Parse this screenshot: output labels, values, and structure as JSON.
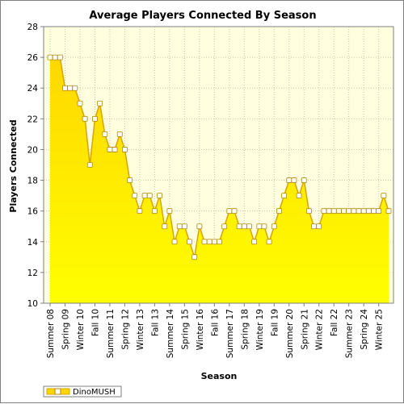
{
  "chart_data": {
    "type": "area",
    "title": "Average Players Connected By Season",
    "xlabel": "Season",
    "ylabel": "Players Connected",
    "ylim": [
      10,
      28
    ],
    "yticks": [
      10,
      12,
      14,
      16,
      18,
      20,
      22,
      24,
      26,
      28
    ],
    "x_tick_labels": [
      "Summer 08",
      "Spring 09",
      "Winter 10",
      "Fall 10",
      "Summer 11",
      "Spring 12",
      "Winter 13",
      "Fall 13",
      "Summer 14",
      "Spring 15",
      "Winter 16",
      "Fall 16",
      "Summer 17",
      "Spring 18",
      "Winter 19",
      "Fall 19",
      "Summer 20",
      "Spring 21",
      "Winter 22",
      "Fall 22",
      "Summer 23",
      "Spring 24",
      "Winter 25"
    ],
    "x_tick_positions": [
      0,
      3,
      6,
      9,
      12,
      15,
      18,
      21,
      24,
      27,
      30,
      33,
      36,
      39,
      42,
      45,
      48,
      51,
      54,
      57,
      60,
      63,
      66
    ],
    "grid": true,
    "legend_position": "bottom-left",
    "series": [
      {
        "name": "DinoMUSH",
        "values": [
          26,
          26,
          26,
          24,
          24,
          24,
          23,
          22,
          19,
          22,
          23,
          21,
          20,
          20,
          21,
          20,
          18,
          17,
          16,
          17,
          17,
          16,
          17,
          15,
          16,
          14,
          15,
          15,
          14,
          13,
          15,
          14,
          14,
          14,
          14,
          15,
          16,
          16,
          15,
          15,
          15,
          14,
          15,
          15,
          14,
          15,
          16,
          17,
          18,
          18,
          17,
          18,
          16,
          15,
          15,
          16,
          16,
          16,
          16,
          16,
          16,
          16,
          16,
          16,
          16,
          16,
          16,
          17,
          16
        ]
      }
    ],
    "colors": {
      "fill_top": "#ffd700",
      "fill_bottom": "#ffff00",
      "line": "#d9a400",
      "marker_fill": "#ffffff",
      "marker_stroke": "#b08800",
      "plot_background": "#ffffe0",
      "grid": "#c8c8a0"
    }
  }
}
